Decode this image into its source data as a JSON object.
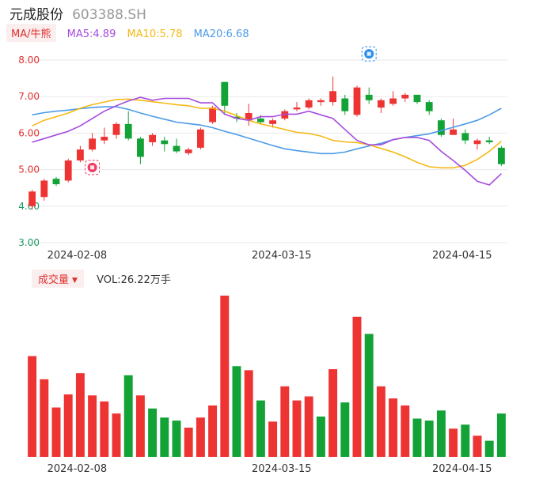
{
  "header": {
    "name": "元成股份",
    "code": "603388.SH"
  },
  "ma_legend": {
    "tag": "MA/牛熊",
    "ma5": "MA5:4.89",
    "ma10": "MA10:5.78",
    "ma20": "MA20:6.68"
  },
  "volume_legend": {
    "tag": "成交量",
    "value": "VOL:26.22万手"
  },
  "colors": {
    "up": "#ee3333",
    "down": "#12a236",
    "ma5": "#a64bdf",
    "ma10": "#f5b915",
    "ma20": "#4c9be8",
    "grid": "#e8e8e8"
  },
  "icons": {
    "marker_a": "bull-badge-icon",
    "marker_b": "news-badge-icon"
  },
  "chart_data": {
    "type": "candlestick",
    "y_ticks": [
      "8.00",
      "7.00",
      "6.00",
      "5.00",
      "4.00",
      "3.00"
    ],
    "ylim": [
      3.0,
      8.0
    ],
    "x_ticks": [
      {
        "label": "2024-02-08",
        "index": 4
      },
      {
        "label": "2024-03-15",
        "index": 21
      },
      {
        "label": "2024-04-15",
        "index": 36
      }
    ],
    "candles": [
      {
        "o": 4.0,
        "c": 4.4,
        "h": 4.45,
        "l": 3.9
      },
      {
        "o": 4.25,
        "c": 4.7,
        "h": 4.75,
        "l": 4.15
      },
      {
        "o": 4.75,
        "c": 4.6,
        "h": 4.8,
        "l": 4.55
      },
      {
        "o": 4.7,
        "c": 5.25,
        "h": 5.3,
        "l": 4.65
      },
      {
        "o": 5.25,
        "c": 5.55,
        "h": 5.65,
        "l": 5.2
      },
      {
        "o": 5.55,
        "c": 5.85,
        "h": 6.0,
        "l": 5.5
      },
      {
        "o": 5.8,
        "c": 5.9,
        "h": 6.15,
        "l": 5.7
      },
      {
        "o": 5.95,
        "c": 6.25,
        "h": 6.3,
        "l": 5.85
      },
      {
        "o": 6.25,
        "c": 5.85,
        "h": 6.6,
        "l": 5.8
      },
      {
        "o": 5.85,
        "c": 5.35,
        "h": 5.9,
        "l": 5.15
      },
      {
        "o": 5.75,
        "c": 5.95,
        "h": 6.0,
        "l": 5.65
      },
      {
        "o": 5.8,
        "c": 5.7,
        "h": 5.9,
        "l": 5.5
      },
      {
        "o": 5.65,
        "c": 5.5,
        "h": 5.85,
        "l": 5.45
      },
      {
        "o": 5.45,
        "c": 5.55,
        "h": 5.6,
        "l": 5.4
      },
      {
        "o": 5.6,
        "c": 6.1,
        "h": 6.15,
        "l": 5.55
      },
      {
        "o": 6.3,
        "c": 6.7,
        "h": 6.75,
        "l": 6.25
      },
      {
        "o": 7.4,
        "c": 6.75,
        "h": 7.4,
        "l": 6.5
      },
      {
        "o": 6.45,
        "c": 6.4,
        "h": 6.55,
        "l": 6.3
      },
      {
        "o": 6.35,
        "c": 6.55,
        "h": 6.8,
        "l": 6.2
      },
      {
        "o": 6.4,
        "c": 6.3,
        "h": 6.5,
        "l": 6.25
      },
      {
        "o": 6.25,
        "c": 6.35,
        "h": 6.4,
        "l": 6.15
      },
      {
        "o": 6.4,
        "c": 6.6,
        "h": 6.65,
        "l": 6.35
      },
      {
        "o": 6.65,
        "c": 6.7,
        "h": 6.85,
        "l": 6.6
      },
      {
        "o": 6.7,
        "c": 6.9,
        "h": 6.95,
        "l": 6.65
      },
      {
        "o": 6.85,
        "c": 6.9,
        "h": 6.95,
        "l": 6.75
      },
      {
        "o": 6.85,
        "c": 7.15,
        "h": 7.55,
        "l": 6.75
      },
      {
        "o": 6.95,
        "c": 6.6,
        "h": 7.05,
        "l": 6.5
      },
      {
        "o": 6.5,
        "c": 7.25,
        "h": 7.3,
        "l": 6.45
      },
      {
        "o": 7.05,
        "c": 6.9,
        "h": 7.25,
        "l": 6.8
      },
      {
        "o": 6.7,
        "c": 6.9,
        "h": 6.95,
        "l": 6.55
      },
      {
        "o": 6.8,
        "c": 6.95,
        "h": 7.15,
        "l": 6.75
      },
      {
        "o": 6.95,
        "c": 7.05,
        "h": 7.1,
        "l": 6.85
      },
      {
        "o": 7.05,
        "c": 6.85,
        "h": 7.05,
        "l": 6.8
      },
      {
        "o": 6.85,
        "c": 6.6,
        "h": 6.9,
        "l": 6.5
      },
      {
        "o": 6.35,
        "c": 5.95,
        "h": 6.4,
        "l": 5.9
      },
      {
        "o": 5.95,
        "c": 6.1,
        "h": 6.4,
        "l": 5.95
      },
      {
        "o": 6.0,
        "c": 5.8,
        "h": 6.1,
        "l": 5.7
      },
      {
        "o": 5.7,
        "c": 5.8,
        "h": 5.85,
        "l": 5.55
      },
      {
        "o": 5.8,
        "c": 5.75,
        "h": 5.9,
        "l": 5.7
      },
      {
        "o": 5.6,
        "c": 5.15,
        "h": 5.65,
        "l": 5.1
      }
    ],
    "volume": [
      {
        "v": 100,
        "up": true
      },
      {
        "v": 77,
        "up": true
      },
      {
        "v": 49,
        "up": true
      },
      {
        "v": 62,
        "up": true
      },
      {
        "v": 83,
        "up": true
      },
      {
        "v": 61,
        "up": true
      },
      {
        "v": 55,
        "up": true
      },
      {
        "v": 43,
        "up": true
      },
      {
        "v": 81,
        "up": false
      },
      {
        "v": 61,
        "up": true
      },
      {
        "v": 48,
        "up": false
      },
      {
        "v": 39,
        "up": false
      },
      {
        "v": 36,
        "up": false
      },
      {
        "v": 29,
        "up": true
      },
      {
        "v": 39,
        "up": true
      },
      {
        "v": 51,
        "up": true
      },
      {
        "v": 160,
        "up": true
      },
      {
        "v": 90,
        "up": false
      },
      {
        "v": 86,
        "up": true
      },
      {
        "v": 56,
        "up": false
      },
      {
        "v": 35,
        "up": true
      },
      {
        "v": 70,
        "up": true
      },
      {
        "v": 56,
        "up": true
      },
      {
        "v": 60,
        "up": true
      },
      {
        "v": 40,
        "up": false
      },
      {
        "v": 87,
        "up": true
      },
      {
        "v": 54,
        "up": false
      },
      {
        "v": 139,
        "up": true
      },
      {
        "v": 122,
        "up": false
      },
      {
        "v": 70,
        "up": true
      },
      {
        "v": 58,
        "up": true
      },
      {
        "v": 51,
        "up": true
      },
      {
        "v": 38,
        "up": false
      },
      {
        "v": 36,
        "up": false
      },
      {
        "v": 46,
        "up": false
      },
      {
        "v": 28,
        "up": true
      },
      {
        "v": 32,
        "up": false
      },
      {
        "v": 21,
        "up": true
      },
      {
        "v": 16,
        "up": false
      },
      {
        "v": 43,
        "up": false
      }
    ],
    "ma5": [
      5.75,
      5.85,
      5.95,
      6.05,
      6.2,
      6.4,
      6.6,
      6.75,
      6.88,
      6.98,
      6.9,
      6.95,
      6.95,
      6.95,
      6.83,
      6.83,
      6.52,
      6.4,
      6.35,
      6.45,
      6.45,
      6.52,
      6.52,
      6.6,
      6.5,
      6.4,
      6.1,
      5.8,
      5.68,
      5.68,
      5.82,
      5.88,
      5.88,
      5.8,
      5.5,
      5.25,
      4.98,
      4.68,
      4.58,
      4.89
    ],
    "ma10": [
      6.2,
      6.35,
      6.45,
      6.55,
      6.68,
      6.78,
      6.85,
      6.92,
      6.93,
      6.9,
      6.86,
      6.82,
      6.78,
      6.75,
      6.68,
      6.68,
      6.6,
      6.48,
      6.35,
      6.25,
      6.18,
      6.1,
      6.02,
      5.99,
      5.92,
      5.8,
      5.76,
      5.74,
      5.68,
      5.58,
      5.48,
      5.35,
      5.2,
      5.08,
      5.05,
      5.05,
      5.12,
      5.28,
      5.5,
      5.78
    ],
    "ma20": [
      6.5,
      6.56,
      6.6,
      6.63,
      6.67,
      6.7,
      6.72,
      6.72,
      6.65,
      6.55,
      6.46,
      6.38,
      6.3,
      6.26,
      6.22,
      6.15,
      6.05,
      5.96,
      5.86,
      5.76,
      5.66,
      5.57,
      5.52,
      5.48,
      5.44,
      5.44,
      5.48,
      5.57,
      5.65,
      5.72,
      5.82,
      5.88,
      5.93,
      5.98,
      6.07,
      6.16,
      6.25,
      6.35,
      6.5,
      6.68
    ],
    "markers": [
      {
        "index": 5,
        "price": 5.06,
        "kind": "bull"
      },
      {
        "index": 28,
        "price": 8.17,
        "kind": "news"
      }
    ]
  }
}
